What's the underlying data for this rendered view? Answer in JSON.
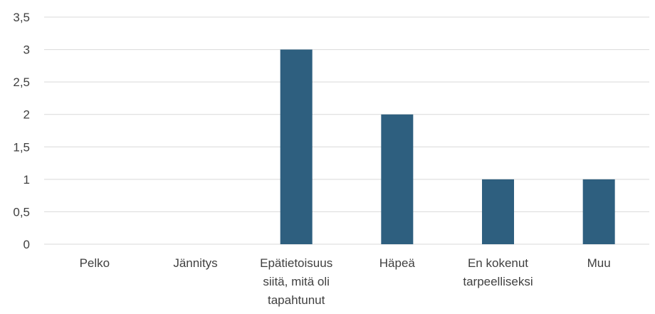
{
  "chart_data": {
    "type": "bar",
    "categories": [
      [
        "Pelko"
      ],
      [
        "Jännitys"
      ],
      [
        "Epätietoisuus",
        "siitä, mitä oli",
        "tapahtunut"
      ],
      [
        "Häpeä"
      ],
      [
        "En kokenut",
        "tarpeelliseksi"
      ],
      [
        "Muu"
      ]
    ],
    "values": [
      0,
      0,
      3,
      2,
      1,
      1
    ],
    "title": "",
    "xlabel": "",
    "ylabel": "",
    "ylim": [
      0,
      3.5
    ],
    "yticks": [
      "0",
      "0,5",
      "1",
      "1,5",
      "2",
      "2,5",
      "3",
      "3,5"
    ],
    "ytick_values": [
      0,
      0.5,
      1,
      1.5,
      2,
      2.5,
      3,
      3.5
    ],
    "grid": true,
    "legend": "none",
    "bar_color": "#2e5f7f",
    "grid_color": "#d9d9d9",
    "text_color": "#404040"
  }
}
